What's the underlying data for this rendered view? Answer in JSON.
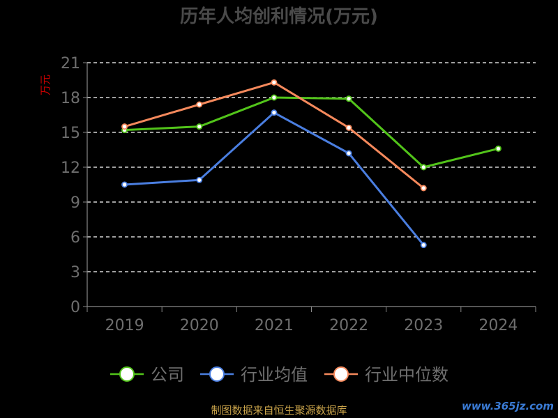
{
  "chart_data": {
    "type": "line",
    "title": "历年人均创利情况(万元)",
    "ylabel": "万元",
    "ylim": [
      0,
      21
    ],
    "yticks": [
      0,
      3,
      6,
      9,
      12,
      15,
      18,
      21
    ],
    "grid": true,
    "legend_position": "bottom",
    "categories": [
      "2019",
      "2020",
      "2021",
      "2022",
      "2023",
      "2024"
    ],
    "series": [
      {
        "name": "公司",
        "color": "#52c41a",
        "values": [
          15.2,
          15.5,
          18.0,
          17.9,
          12.0,
          13.6
        ]
      },
      {
        "name": "行业均值",
        "color": "#4a7ee0",
        "values": [
          10.5,
          10.9,
          16.7,
          13.2,
          5.3,
          null
        ]
      },
      {
        "name": "行业中位数",
        "color": "#f5895c",
        "values": [
          15.5,
          17.4,
          19.3,
          15.4,
          10.2,
          null
        ]
      }
    ]
  },
  "footer": {
    "source": "制图数据来自恒生聚源数据库",
    "watermark": "www.365jz.com"
  }
}
